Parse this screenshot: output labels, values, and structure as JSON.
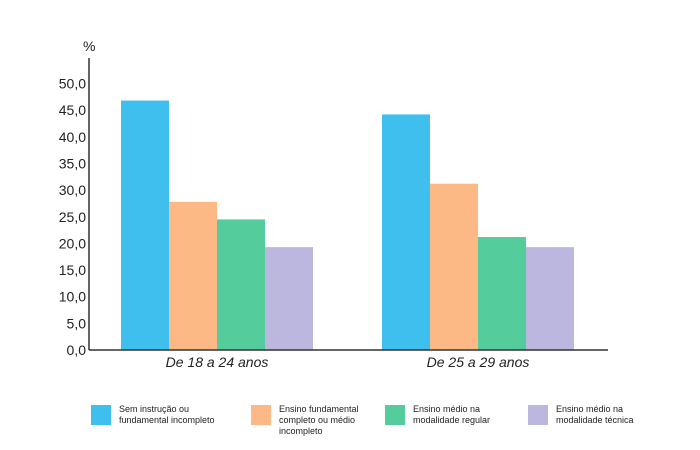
{
  "chart_data": {
    "type": "bar",
    "unit_label": "%",
    "categories": [
      "De 18 a 24 anos",
      "De 25 a 29 anos"
    ],
    "series": [
      {
        "name": "Sem instrução ou fundamental incompleto",
        "color": "#3fbfed",
        "values": [
          46.8,
          44.2
        ]
      },
      {
        "name": "Ensino fundamental completo ou médio incompleto",
        "color": "#fcb985",
        "values": [
          27.8,
          31.2
        ]
      },
      {
        "name": "Ensino médio na modalidade regular",
        "color": "#55cc9c",
        "values": [
          24.5,
          21.2
        ]
      },
      {
        "name": "Ensino médio na modalidade técnica",
        "color": "#bbb7df",
        "values": [
          19.3,
          19.3
        ]
      }
    ],
    "yticks": [
      "0,0",
      "5,0",
      "10,0",
      "15,0",
      "20,0",
      "25,0",
      "30,0",
      "35,0",
      "40,0",
      "45,0",
      "50,0"
    ],
    "ylim": [
      0,
      55
    ]
  }
}
